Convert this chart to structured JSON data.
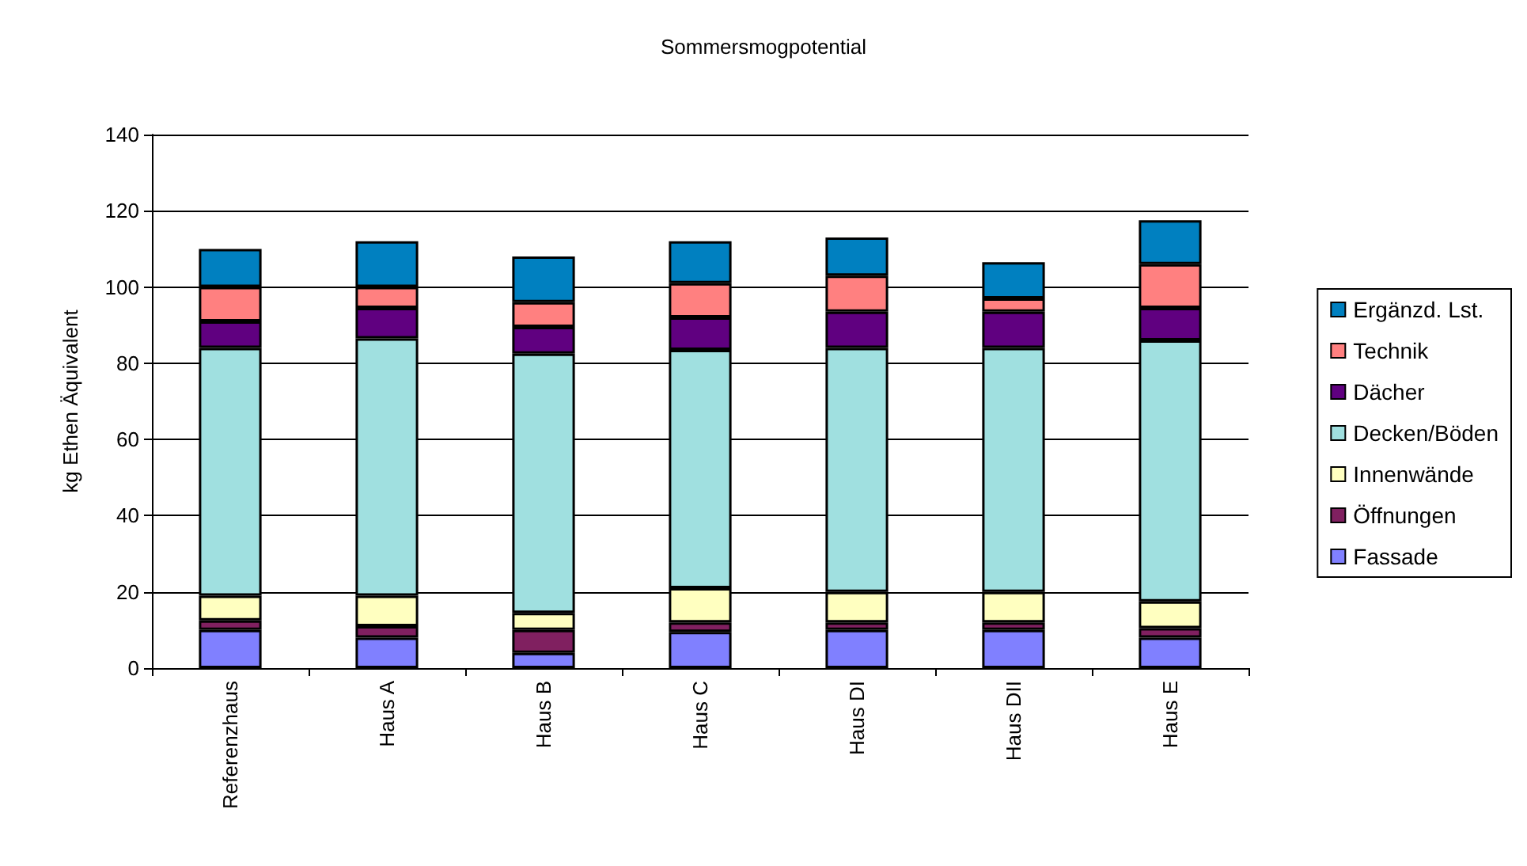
{
  "chart_data": {
    "type": "bar",
    "title": "Sommersmogpotential",
    "ylabel": "kg Ethen Äquivalent",
    "categories": [
      "Referenzhaus",
      "Haus A",
      "Haus B",
      "Haus C",
      "Haus DI",
      "Haus DII",
      "Haus E"
    ],
    "stacked": true,
    "ylim": [
      0,
      140
    ],
    "yticks": [
      0,
      20,
      40,
      60,
      80,
      100,
      120,
      140
    ],
    "grid": "y",
    "legend": "right",
    "series": [
      {
        "name": "Fassade",
        "color": "#8080ff",
        "values": [
          10,
          8,
          4,
          9.5,
          10,
          10,
          8
        ]
      },
      {
        "name": "Öffnungen",
        "color": "#802060",
        "values": [
          2.5,
          3,
          6,
          2.5,
          2,
          2,
          2.5
        ]
      },
      {
        "name": "Innenwände",
        "color": "#ffffc0",
        "values": [
          6.5,
          8,
          4.5,
          9,
          8,
          8,
          7
        ]
      },
      {
        "name": "Decken/Böden",
        "color": "#a0e0e0",
        "values": [
          65,
          67.5,
          68,
          62.5,
          64,
          64,
          68.5
        ]
      },
      {
        "name": "Dächer",
        "color": "#600080",
        "values": [
          7,
          8,
          7,
          8.5,
          9.5,
          9.5,
          8.5
        ]
      },
      {
        "name": "Technik",
        "color": "#ff8080",
        "values": [
          9,
          5.5,
          6.5,
          9,
          9.5,
          3.5,
          11.5
        ]
      },
      {
        "name": "Ergänzd. Lst.",
        "color": "#0080c0",
        "values": [
          10,
          12,
          12,
          11,
          10,
          9.5,
          11.5
        ]
      }
    ]
  }
}
